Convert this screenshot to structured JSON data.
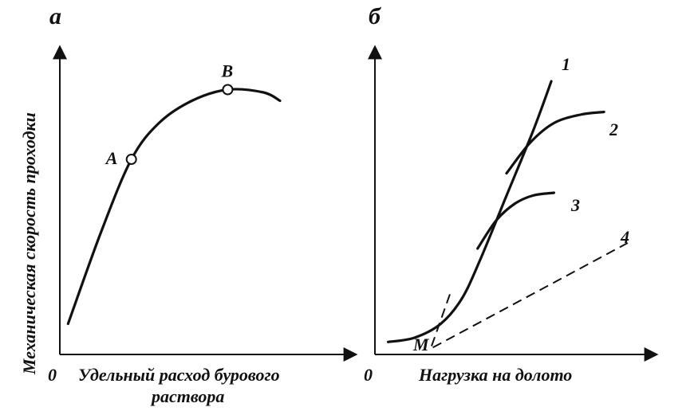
{
  "chart_data": [
    {
      "type": "line",
      "panel_label": "а",
      "ylabel": "Механическая скорость проходки",
      "xlabel_lines": [
        "Удельный расход бурового",
        "раствора"
      ],
      "origin_label": "0",
      "xlim": [
        0,
        10
      ],
      "ylim": [
        0,
        10
      ],
      "series": [
        {
          "x": [
            0.3,
            1.5,
            2.6,
            3.6,
            4.8,
            6.1,
            7.4,
            8.0
          ],
          "y": [
            1.1,
            4.4,
            7.0,
            8.3,
            9.1,
            9.5,
            9.4,
            9.1
          ]
        }
      ],
      "points": [
        {
          "label": "A",
          "x": 2.6,
          "y": 7.0
        },
        {
          "label": "B",
          "x": 6.1,
          "y": 9.5
        }
      ]
    },
    {
      "type": "line",
      "panel_label": "б",
      "xlabel": "Нагрузка на долото",
      "origin_label": "0",
      "special_point_label": "M",
      "xlim": [
        0,
        10
      ],
      "ylim": [
        0,
        10
      ],
      "series": [
        {
          "label": "1",
          "style": "solid",
          "x": [
            0.5,
            1.5,
            2.5,
            3.3,
            4.0,
            5.0,
            6.0,
            6.7
          ],
          "y": [
            0.45,
            0.6,
            1.1,
            2.0,
            3.4,
            5.7,
            8.0,
            9.8
          ]
        },
        {
          "label": "2",
          "style": "solid",
          "x": [
            5.0,
            5.9,
            6.8,
            7.8,
            8.7
          ],
          "y": [
            6.5,
            7.6,
            8.3,
            8.6,
            8.7
          ]
        },
        {
          "label": "3",
          "style": "solid",
          "x": [
            3.9,
            4.6,
            5.3,
            6.0,
            6.8
          ],
          "y": [
            3.8,
            4.8,
            5.4,
            5.7,
            5.8
          ]
        },
        {
          "label": "4",
          "style": "dashed",
          "x": [
            2.2,
            9.6
          ],
          "y": [
            0.25,
            4.0
          ]
        },
        {
          "style": "dashed-tangent",
          "x": [
            2.15,
            2.9
          ],
          "y": [
            0.3,
            2.3
          ]
        }
      ]
    }
  ]
}
